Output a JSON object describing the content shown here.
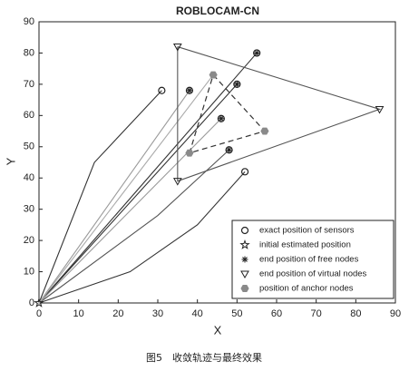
{
  "chart_data": {
    "type": "line",
    "title": "ROBLOCAM-CN",
    "xlabel": "X",
    "ylabel": "Y",
    "caption": "图5　收敛轨迹与最终效果",
    "xlim": [
      0,
      90
    ],
    "ylim": [
      0,
      90
    ],
    "xticks": [
      0,
      10,
      20,
      30,
      40,
      50,
      60,
      70,
      80,
      90
    ],
    "yticks": [
      0,
      10,
      20,
      30,
      40,
      50,
      60,
      70,
      80,
      90
    ],
    "legend": "lower right",
    "trajectories": [
      {
        "color": "#333333",
        "x": [
          0,
          14,
          31
        ],
        "y": [
          0,
          45,
          68
        ]
      },
      {
        "color": "#333333",
        "x": [
          0,
          55
        ],
        "y": [
          0,
          80
        ]
      },
      {
        "color": "#333333",
        "x": [
          0,
          50
        ],
        "y": [
          0,
          70
        ]
      },
      {
        "color": "#555555",
        "x": [
          0,
          30,
          48
        ],
        "y": [
          0,
          28,
          49
        ]
      },
      {
        "color": "#333333",
        "x": [
          0,
          23,
          40,
          52
        ],
        "y": [
          0,
          10,
          25,
          42
        ]
      },
      {
        "color": "#999999",
        "x": [
          0,
          38
        ],
        "y": [
          0,
          68
        ]
      },
      {
        "color": "#999999",
        "x": [
          0,
          46
        ],
        "y": [
          0,
          59
        ]
      },
      {
        "color": "#aaaaaa",
        "x": [
          0,
          44
        ],
        "y": [
          0,
          73
        ]
      },
      {
        "color": "#555555",
        "x": [
          35,
          86,
          35,
          35
        ],
        "y": [
          82,
          62,
          39,
          82
        ]
      }
    ],
    "series": [
      {
        "name": "exact position of sensors",
        "marker": "circle",
        "color": "#222222",
        "x": [
          31,
          55,
          50,
          46,
          48,
          52,
          38
        ],
        "y": [
          68,
          80,
          70,
          59,
          49,
          42,
          68
        ]
      },
      {
        "name": "initial estimated position",
        "marker": "star",
        "color": "#222222",
        "x": [
          0
        ],
        "y": [
          0
        ]
      },
      {
        "name": "end position of free nodes",
        "marker": "asterisk",
        "color": "#222222",
        "x": [
          55,
          50,
          46,
          48,
          38
        ],
        "y": [
          80,
          70,
          59,
          49,
          68
        ]
      },
      {
        "name": "end position of virtual nodes",
        "marker": "triangle",
        "color": "#222222",
        "x": [
          35,
          86,
          35
        ],
        "y": [
          82,
          62,
          39
        ]
      },
      {
        "name": "position of anchor nodes",
        "marker": "anchor",
        "color": "#8a8a8a",
        "x": [
          44,
          57,
          38
        ],
        "y": [
          73,
          55,
          48
        ]
      }
    ]
  }
}
